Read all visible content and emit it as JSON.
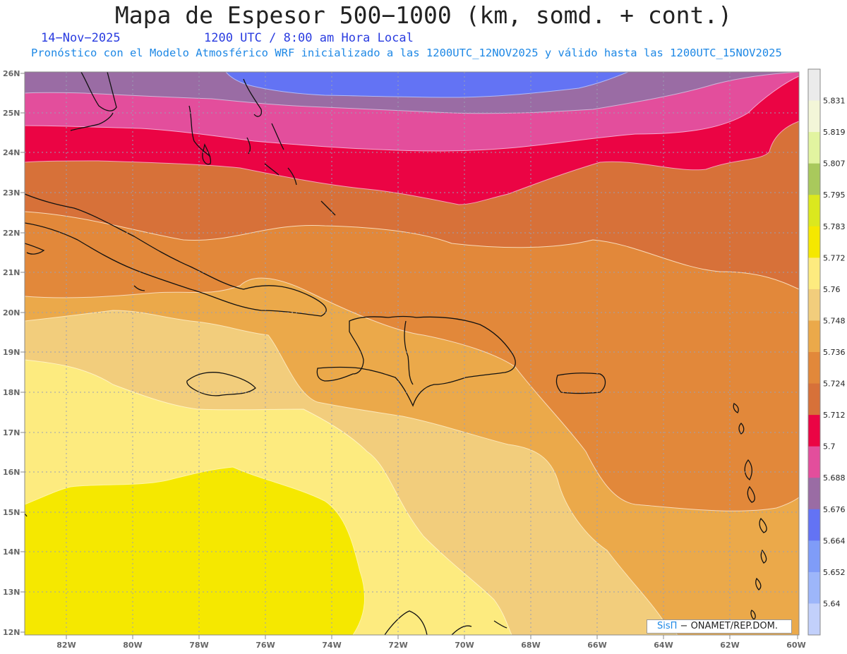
{
  "header": {
    "title": "Mapa de Espesor 500−1000 (km, somd. + cont.)",
    "date": "14−Nov−2025",
    "time": "1200 UTC / 8:00 am Hora Local",
    "info": "Pronóstico con el Modelo Atmosférico WRF inicializado a las 1200UTC_12NOV2025 y válido hasta las  1200UTC_15NOV2025"
  },
  "credit": {
    "brand": "SisΠ",
    "text": " − ONAMET/REP.DOM."
  },
  "axes": {
    "lat_labels": [
      "26N",
      "25N",
      "24N",
      "23N",
      "22N",
      "21N",
      "20N",
      "19N",
      "18N",
      "17N",
      "16N",
      "15N",
      "14N",
      "13N",
      "12N"
    ],
    "lon_labels": [
      "82W",
      "80W",
      "78W",
      "76W",
      "74W",
      "72W",
      "70W",
      "68W",
      "66W",
      "64W",
      "62W",
      "60W"
    ]
  },
  "legend": {
    "labels": [
      "5.831",
      "5.819",
      "5.807",
      "5.795",
      "5.783",
      "5.772",
      "5.76",
      "5.748",
      "5.736",
      "5.724",
      "5.712",
      "5.7",
      "5.688",
      "5.676",
      "5.664",
      "5.652",
      "5.64"
    ],
    "colors": [
      "#ebebeb",
      "#f3f6d8",
      "#e2f4a0",
      "#a9c95c",
      "#dbe81e",
      "#f5e800",
      "#fdeb7f",
      "#f2cd7c",
      "#eba94a",
      "#e2883a",
      "#d77139",
      "#eb0444",
      "#e34e9c",
      "#9a6ca4",
      "#6373f4",
      "#7f9cf8",
      "#9db6fa",
      "#c2d0fb"
    ]
  }
}
